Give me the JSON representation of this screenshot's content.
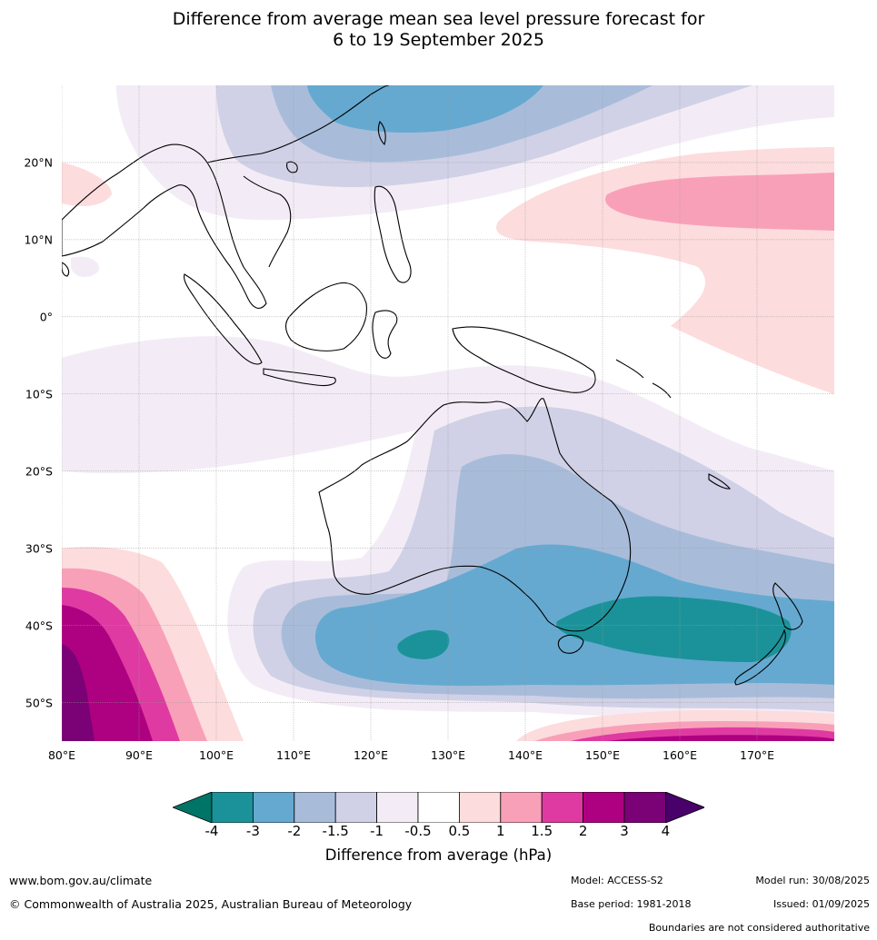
{
  "title_line1": "Difference from average mean sea level pressure forecast for",
  "title_line2": "6 to 19 September 2025",
  "lat_labels": [
    "20°N",
    "10°N",
    "0°",
    "10°S",
    "20°S",
    "30°S",
    "40°S",
    "50°S"
  ],
  "lat_values": [
    20,
    10,
    0,
    -10,
    -20,
    -30,
    -40,
    -50
  ],
  "lon_labels": [
    "80°E",
    "90°E",
    "100°E",
    "110°E",
    "120°E",
    "130°E",
    "140°E",
    "150°E",
    "160°E",
    "170°E"
  ],
  "lon_values": [
    80,
    90,
    100,
    110,
    120,
    130,
    140,
    150,
    160,
    170
  ],
  "map_extent": {
    "lon_min": 80,
    "lon_max": 180,
    "lat_min": -55,
    "lat_max": 30
  },
  "colorbar": {
    "tick_labels": [
      "-4",
      "-3",
      "-2",
      "-1.5",
      "-1",
      "-0.5",
      "0.5",
      "1",
      "1.5",
      "2",
      "3",
      "4"
    ],
    "colors": [
      "#007466",
      "#1b9299",
      "#65a9d0",
      "#a8bcda",
      "#d0d1e6",
      "#f3ecf6",
      "#ffffff",
      "#fddcdd",
      "#f9a0b9",
      "#df3aa1",
      "#ae0181",
      "#7a0176",
      "#49006a"
    ],
    "label": "Difference from average (hPa)"
  },
  "footer": {
    "website": "www.bom.gov.au/climate",
    "copyright": "© Commonwealth of Australia 2025, Australian Bureau of Meteorology",
    "model": "Model: ACCESS-S2",
    "base_period": "Base period: 1981-2018",
    "model_run": "Model run: 30/08/2025",
    "issued": "Issued: 01/09/2025",
    "disclaimer": "Boundaries are not considered authoritative"
  }
}
